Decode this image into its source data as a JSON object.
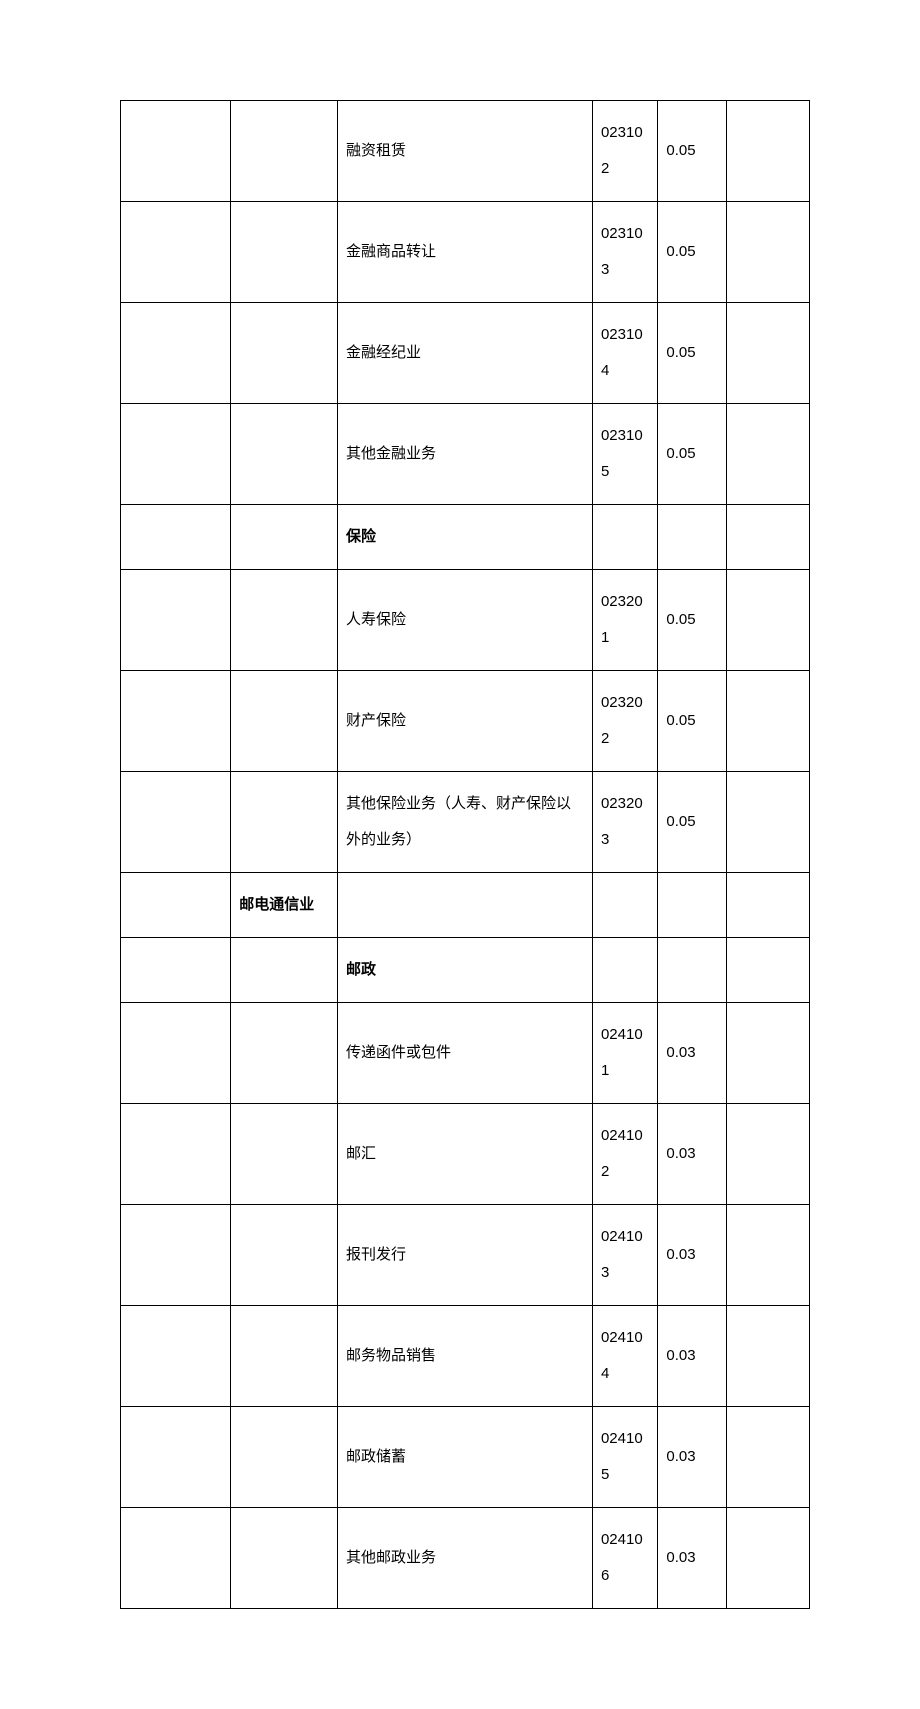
{
  "table": {
    "background_color": "#ffffff",
    "border_color": "#000000",
    "text_color": "#000000",
    "font_size": 15,
    "line_height": 2.4,
    "columns": [
      {
        "width_pct": 16
      },
      {
        "width_pct": 15.5
      },
      {
        "width_pct": 37
      },
      {
        "width_pct": 9.5
      },
      {
        "width_pct": 10
      },
      {
        "width_pct": 12
      }
    ],
    "rows": [
      {
        "c1": "",
        "c2": "",
        "c3": "融资租赁",
        "c3_bold": false,
        "c4": "023102",
        "c5": "0.05",
        "c6": ""
      },
      {
        "c1": "",
        "c2": "",
        "c3": "金融商品转让",
        "c3_bold": false,
        "c4": "023103",
        "c5": "0.05",
        "c6": ""
      },
      {
        "c1": "",
        "c2": "",
        "c3": "金融经纪业",
        "c3_bold": false,
        "c4": "023104",
        "c5": "0.05",
        "c6": ""
      },
      {
        "c1": "",
        "c2": "",
        "c3": "其他金融业务",
        "c3_bold": false,
        "c4": "023105",
        "c5": "0.05",
        "c6": ""
      },
      {
        "c1": "",
        "c2": "",
        "c3": "保险",
        "c3_bold": true,
        "c4": "",
        "c5": "",
        "c6": ""
      },
      {
        "c1": "",
        "c2": "",
        "c3": "人寿保险",
        "c3_bold": false,
        "c4": "023201",
        "c5": "0.05",
        "c6": ""
      },
      {
        "c1": "",
        "c2": "",
        "c3": "财产保险",
        "c3_bold": false,
        "c4": "023202",
        "c5": "0.05",
        "c6": ""
      },
      {
        "c1": "",
        "c2": "",
        "c3": "其他保险业务（人寿、财产保险以外的业务）",
        "c3_bold": false,
        "c4": "023203",
        "c5": "0.05",
        "c6": ""
      },
      {
        "c1": "",
        "c2": "邮电通信业",
        "c2_bold": true,
        "c3": "",
        "c3_bold": false,
        "c4": "",
        "c5": "",
        "c6": ""
      },
      {
        "c1": "",
        "c2": "",
        "c3": "邮政",
        "c3_bold": true,
        "c4": "",
        "c5": "",
        "c6": ""
      },
      {
        "c1": "",
        "c2": "",
        "c3": "传递函件或包件",
        "c3_bold": false,
        "c4": "024101",
        "c5": "0.03",
        "c6": ""
      },
      {
        "c1": "",
        "c2": "",
        "c3": "邮汇",
        "c3_bold": false,
        "c4": "024102",
        "c5": "0.03",
        "c6": ""
      },
      {
        "c1": "",
        "c2": "",
        "c3": "报刊发行",
        "c3_bold": false,
        "c4": "024103",
        "c5": "0.03",
        "c6": ""
      },
      {
        "c1": "",
        "c2": "",
        "c3": "邮务物品销售",
        "c3_bold": false,
        "c4": "024104",
        "c5": "0.03",
        "c6": ""
      },
      {
        "c1": "",
        "c2": "",
        "c3": "邮政储蓄",
        "c3_bold": false,
        "c4": "024105",
        "c5": "0.03",
        "c6": ""
      },
      {
        "c1": "",
        "c2": "",
        "c3": "其他邮政业务",
        "c3_bold": false,
        "c4": "024106",
        "c5": "0.03",
        "c6": ""
      }
    ]
  }
}
